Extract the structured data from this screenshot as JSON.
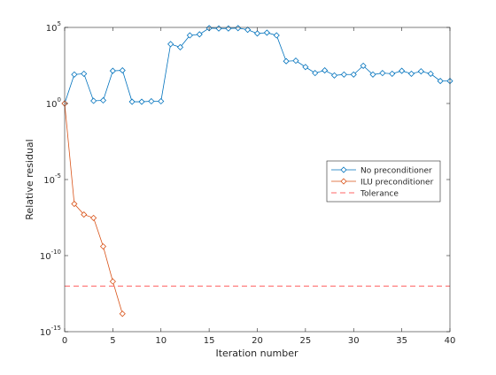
{
  "chart_data": {
    "type": "line",
    "title": "",
    "xlabel": "Iteration number",
    "ylabel": "Relative residual",
    "y_scale": "log",
    "xlim": [
      0,
      40
    ],
    "ylim": [
      1e-15,
      100000
    ],
    "x_ticks": [
      0,
      5,
      10,
      15,
      20,
      25,
      30,
      35,
      40
    ],
    "x_tick_labels": [
      "0",
      "5",
      "10",
      "15",
      "20",
      "25",
      "30",
      "35",
      "40"
    ],
    "y_ticks": [
      {
        "value": 1e-15,
        "base": "10",
        "exp": "-15"
      },
      {
        "value": 1e-10,
        "base": "10",
        "exp": "-10"
      },
      {
        "value": 1e-05,
        "base": "10",
        "exp": "-5"
      },
      {
        "value": 1,
        "base": "10",
        "exp": "0"
      },
      {
        "value": 100000,
        "base": "10",
        "exp": "5"
      }
    ],
    "grid": false,
    "legend_position": "right",
    "series": [
      {
        "name": "No preconditioner",
        "color": "#0072BD",
        "marker": "diamond",
        "x": [
          0,
          1,
          2,
          3,
          4,
          5,
          6,
          7,
          8,
          9,
          10,
          11,
          12,
          13,
          14,
          15,
          16,
          17,
          18,
          19,
          20,
          21,
          22,
          23,
          24,
          25,
          26,
          27,
          28,
          29,
          30,
          31,
          32,
          33,
          34,
          35,
          36,
          37,
          38,
          39,
          40
        ],
        "y": [
          1,
          80,
          90,
          1.5,
          1.6,
          140,
          150,
          1.3,
          1.3,
          1.4,
          1.4,
          8000,
          5000,
          30000,
          35000,
          90000,
          85000,
          85000,
          90000,
          70000,
          40000,
          45000,
          30000,
          600,
          650,
          250,
          100,
          150,
          70,
          80,
          80,
          300,
          80,
          100,
          90,
          140,
          90,
          130,
          90,
          30,
          30
        ]
      },
      {
        "name": "ILU preconditioner",
        "color": "#D95319",
        "marker": "diamond",
        "x": [
          0,
          1,
          2,
          3,
          4,
          5,
          6
        ],
        "y": [
          1,
          2.5e-07,
          5e-08,
          3e-08,
          4e-10,
          2e-12,
          1.5e-14
        ]
      },
      {
        "name": "Tolerance",
        "color": "#FF3333",
        "style": "dashed",
        "x": [
          0,
          40
        ],
        "y": [
          1e-12,
          1e-12
        ]
      }
    ]
  }
}
